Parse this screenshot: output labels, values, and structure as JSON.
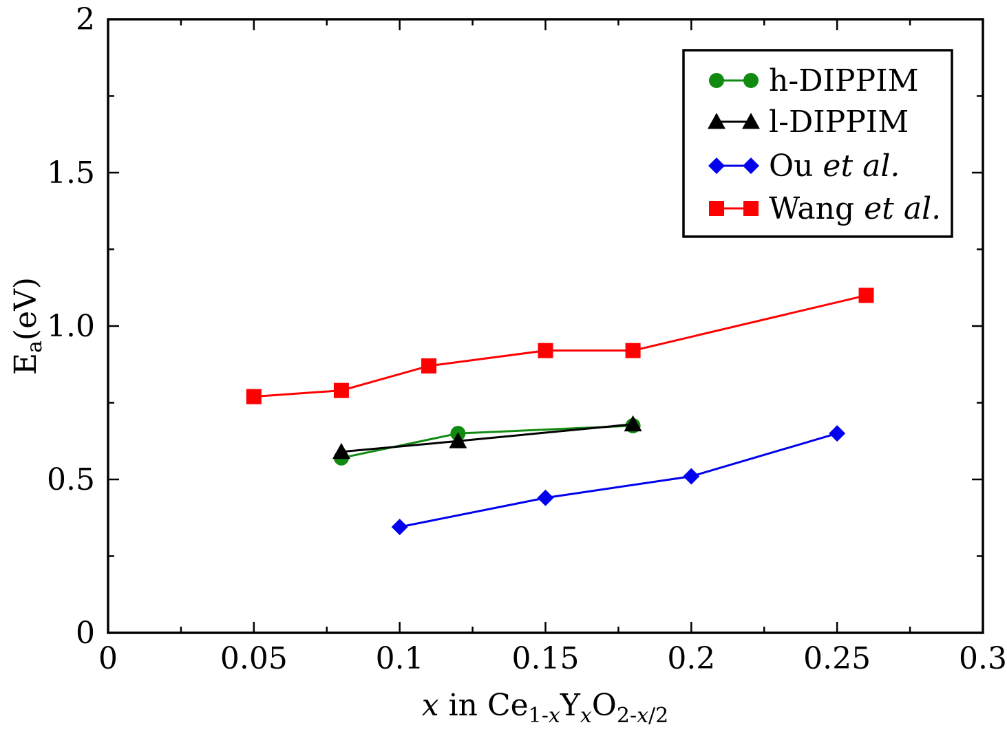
{
  "chart_data": {
    "type": "line",
    "title": "",
    "xlabel": {
      "prefix": "x",
      "mid": " in Ce",
      "sub1": "1-",
      "sub1_italic": "x",
      "y_letter": "Y",
      "sub2_italic": "x",
      "o_letter": "O",
      "sub3_a": "2-",
      "sub3_italic": "x",
      "sub3_b": "/2"
    },
    "ylabel": {
      "main": "E",
      "sub": "a",
      "rest": "(eV)"
    },
    "xlim": [
      0,
      0.3
    ],
    "ylim": [
      0,
      2
    ],
    "x_ticks": [
      {
        "v": 0,
        "label": "0"
      },
      {
        "v": 0.05,
        "label": "0.05"
      },
      {
        "v": 0.1,
        "label": "0.1"
      },
      {
        "v": 0.15,
        "label": "0.15"
      },
      {
        "v": 0.2,
        "label": "0.2"
      },
      {
        "v": 0.25,
        "label": "0.25"
      },
      {
        "v": 0.3,
        "label": "0.3"
      }
    ],
    "y_ticks": [
      {
        "v": 0,
        "label": "0"
      },
      {
        "v": 0.5,
        "label": "0.5"
      },
      {
        "v": 1,
        "label": "1.0"
      },
      {
        "v": 1.5,
        "label": "1.5"
      },
      {
        "v": 2,
        "label": "2"
      }
    ],
    "legend_position": "top-right",
    "series": [
      {
        "name": "h-DIPPIM",
        "name_plain": "h-DIPPIM",
        "name_italic": "",
        "color": "#118a11",
        "marker": "circle",
        "x": [
          0.08,
          0.12,
          0.18
        ],
        "y": [
          0.57,
          0.65,
          0.675
        ]
      },
      {
        "name": "l-DIPPIM",
        "name_plain": "l-DIPPIM",
        "name_italic": "",
        "color": "#000000",
        "marker": "triangle",
        "x": [
          0.08,
          0.12,
          0.18
        ],
        "y": [
          0.59,
          0.625,
          0.68
        ]
      },
      {
        "name": "Ou et al.",
        "name_plain": "Ou ",
        "name_italic": "et al.",
        "color": "#0000ee",
        "marker": "diamond",
        "x": [
          0.1,
          0.15,
          0.2,
          0.25
        ],
        "y": [
          0.345,
          0.44,
          0.51,
          0.65
        ]
      },
      {
        "name": "Wang et al.",
        "name_plain": "Wang ",
        "name_italic": "et al.",
        "color": "#ff0000",
        "marker": "square",
        "x": [
          0.05,
          0.08,
          0.11,
          0.15,
          0.18,
          0.26
        ],
        "y": [
          0.77,
          0.79,
          0.87,
          0.92,
          0.92,
          1.1
        ]
      }
    ]
  }
}
